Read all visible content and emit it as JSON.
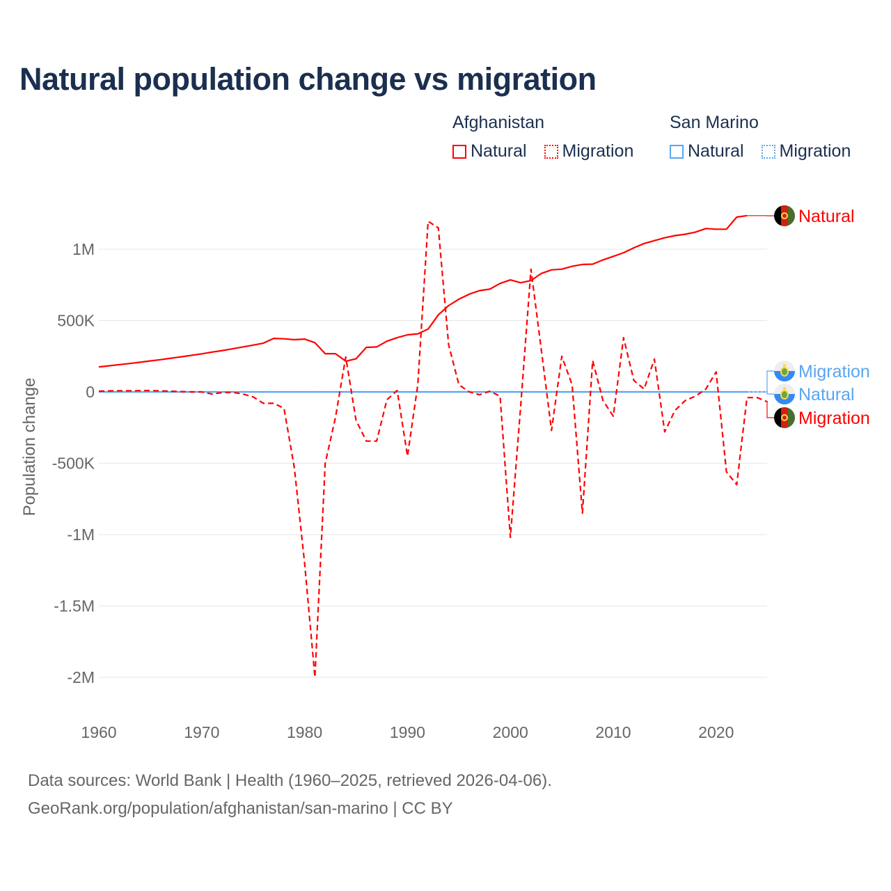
{
  "title": "Natural population change vs migration",
  "legend": {
    "groups": [
      {
        "name": "Afghanistan",
        "items": [
          "Natural",
          "Migration"
        ],
        "color": "#ff0000"
      },
      {
        "name": "San Marino",
        "items": [
          "Natural",
          "Migration"
        ],
        "color": "#5aa5f0"
      }
    ]
  },
  "end_labels": [
    "Natural",
    "Migration",
    "Natural",
    "Migration"
  ],
  "footer": {
    "line1": "Data sources: World Bank | Health (1960–2025, retrieved 2026-04-06).",
    "line2": "GeoRank.org/population/afghanistan/san-marino | CC BY"
  },
  "chart_data": {
    "type": "line",
    "title": "Natural population change vs migration",
    "xlabel": "",
    "ylabel": "Population change",
    "xlim": [
      1960,
      2025
    ],
    "ylim": [
      -2000000,
      1250000
    ],
    "x_ticks": [
      "1960",
      "1970",
      "1980",
      "1990",
      "2000",
      "2010",
      "2020"
    ],
    "y_ticks": [
      {
        "value": 1000000,
        "label": "1M"
      },
      {
        "value": 500000,
        "label": "500K"
      },
      {
        "value": 0,
        "label": "0"
      },
      {
        "value": -500000,
        "label": "-500K"
      },
      {
        "value": -1000000,
        "label": "-1M"
      },
      {
        "value": -1500000,
        "label": "-1.5M"
      },
      {
        "value": -2000000,
        "label": "-2M"
      }
    ],
    "grid": true,
    "legend_position": "top-right",
    "series": [
      {
        "name": "Afghanistan Natural",
        "color": "#ff0000",
        "dash": "solid",
        "start_year": 1960,
        "values_thousands": [
          175,
          183,
          191,
          199,
          208,
          217,
          226,
          236,
          246,
          256,
          267,
          279,
          290,
          302,
          315,
          328,
          342,
          375,
          372,
          366,
          370,
          345,
          268,
          268,
          215,
          232,
          312,
          315,
          355,
          380,
          400,
          407,
          440,
          540,
          605,
          650,
          685,
          710,
          720,
          760,
          785,
          765,
          780,
          830,
          855,
          860,
          880,
          893,
          895,
          925,
          950,
          975,
          1010,
          1040,
          1060,
          1080,
          1095,
          1105,
          1120,
          1145,
          1140,
          1140,
          1225,
          1235
        ]
      },
      {
        "name": "Afghanistan Migration",
        "color": "#ff0000",
        "dash": "dashed",
        "start_year": 1960,
        "values_thousands": [
          5,
          7,
          8,
          8,
          9,
          10,
          7,
          5,
          2,
          0,
          0,
          -15,
          -5,
          -3,
          -15,
          -35,
          -80,
          -80,
          -115,
          -530,
          -1200,
          -2000,
          -500,
          -180,
          245,
          -200,
          -345,
          -345,
          -55,
          10,
          -450,
          50,
          1195,
          1150,
          330,
          50,
          0,
          -20,
          5,
          -30,
          -1020,
          -100,
          860,
          300,
          -270,
          250,
          50,
          -850,
          220,
          -60,
          -170,
          380,
          80,
          20,
          230,
          -280,
          -130,
          -60,
          -30,
          20,
          140,
          -560,
          -650,
          -40,
          -40,
          -70
        ]
      },
      {
        "name": "San Marino Natural",
        "color": "#5aa5f0",
        "dash": "solid",
        "start_year": 1960,
        "values_thousands": [
          0.2,
          0.2,
          0.2,
          0.2,
          0.2,
          0.2,
          0.2,
          0.2,
          0.2,
          0.2,
          0.2,
          0.2,
          0.2,
          0.2,
          0.2,
          0.2,
          0.1,
          0.1,
          0.1,
          0.1,
          0.1,
          0.1,
          0.1,
          0.1,
          0.1,
          0.1,
          0.1,
          0.1,
          0.1,
          0.1,
          0.1,
          0.1,
          0.1,
          0.1,
          0.1,
          0.1,
          0.1,
          0.1,
          0.1,
          0.1,
          0.1,
          0.1,
          0.1,
          0.1,
          0.1,
          0.1,
          0.1,
          0.1,
          0.1,
          0.1,
          0.1,
          0.1,
          0.1,
          0.1,
          0.0,
          0.0,
          0.0,
          0.0,
          0.0,
          0.0,
          -0.1,
          -0.1,
          -0.1,
          -0.1
        ]
      },
      {
        "name": "San Marino Migration",
        "color": "#5aa5f0",
        "dash": "dotted",
        "start_year": 1960,
        "values_thousands": [
          0.1,
          0.1,
          0.1,
          0.1,
          0.1,
          0.1,
          0.1,
          0.1,
          0.1,
          0.1,
          0.1,
          0.1,
          0.1,
          0.1,
          0.1,
          0.1,
          0.1,
          0.1,
          0.1,
          0.1,
          0.1,
          0.1,
          0.1,
          0.1,
          0.1,
          0.1,
          0.1,
          0.1,
          0.1,
          0.1,
          0.2,
          0.2,
          0.2,
          0.2,
          0.2,
          0.2,
          0.2,
          0.2,
          0.2,
          0.2,
          0.2,
          0.2,
          0.2,
          0.2,
          0.2,
          0.2,
          0.2,
          0.2,
          0.2,
          0.2,
          0.2,
          0.2,
          0.2,
          0.2,
          0.2,
          0.2,
          0.2,
          0.2,
          0.2,
          0.2,
          0.2,
          0.2,
          0.2,
          0.2,
          0.2,
          0.2
        ]
      }
    ]
  }
}
